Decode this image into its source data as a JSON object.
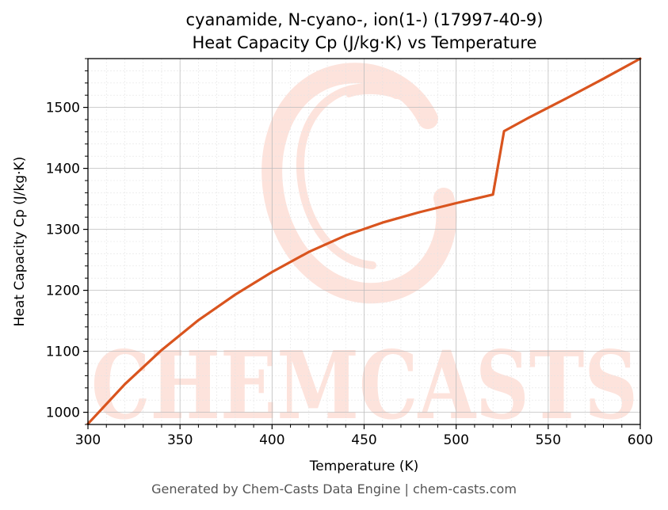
{
  "chart_data": {
    "type": "line",
    "title_line1": "cyanamide, N-cyano-, ion(1-) (17997-40-9)",
    "title_line2": "Heat Capacity Cp (J/kg·K) vs Temperature",
    "xlabel": "Temperature (K)",
    "ylabel": "Heat Capacity Cp (J/kg·K)",
    "xlim": [
      300,
      600
    ],
    "ylim": [
      980,
      1580
    ],
    "xticks": [
      300,
      350,
      400,
      450,
      500,
      550,
      600
    ],
    "yticks": [
      1000,
      1100,
      1200,
      1300,
      1400,
      1500
    ],
    "grid": true,
    "series": [
      {
        "color": "#d9541e",
        "x": [
          300,
          320,
          340,
          360,
          380,
          400,
          420,
          440,
          460,
          480,
          500,
          520,
          526,
          540,
          560,
          580,
          600
        ],
        "y": [
          981,
          1046,
          1102,
          1151,
          1193,
          1230,
          1263,
          1290,
          1311,
          1328,
          1343,
          1357,
          1461,
          1484,
          1515,
          1547,
          1580
        ]
      }
    ]
  },
  "watermark": {
    "text": "CHEMCASTS",
    "color": "#fde3dc"
  },
  "footer": "Generated by Chem-Casts Data Engine | chem-casts.com"
}
